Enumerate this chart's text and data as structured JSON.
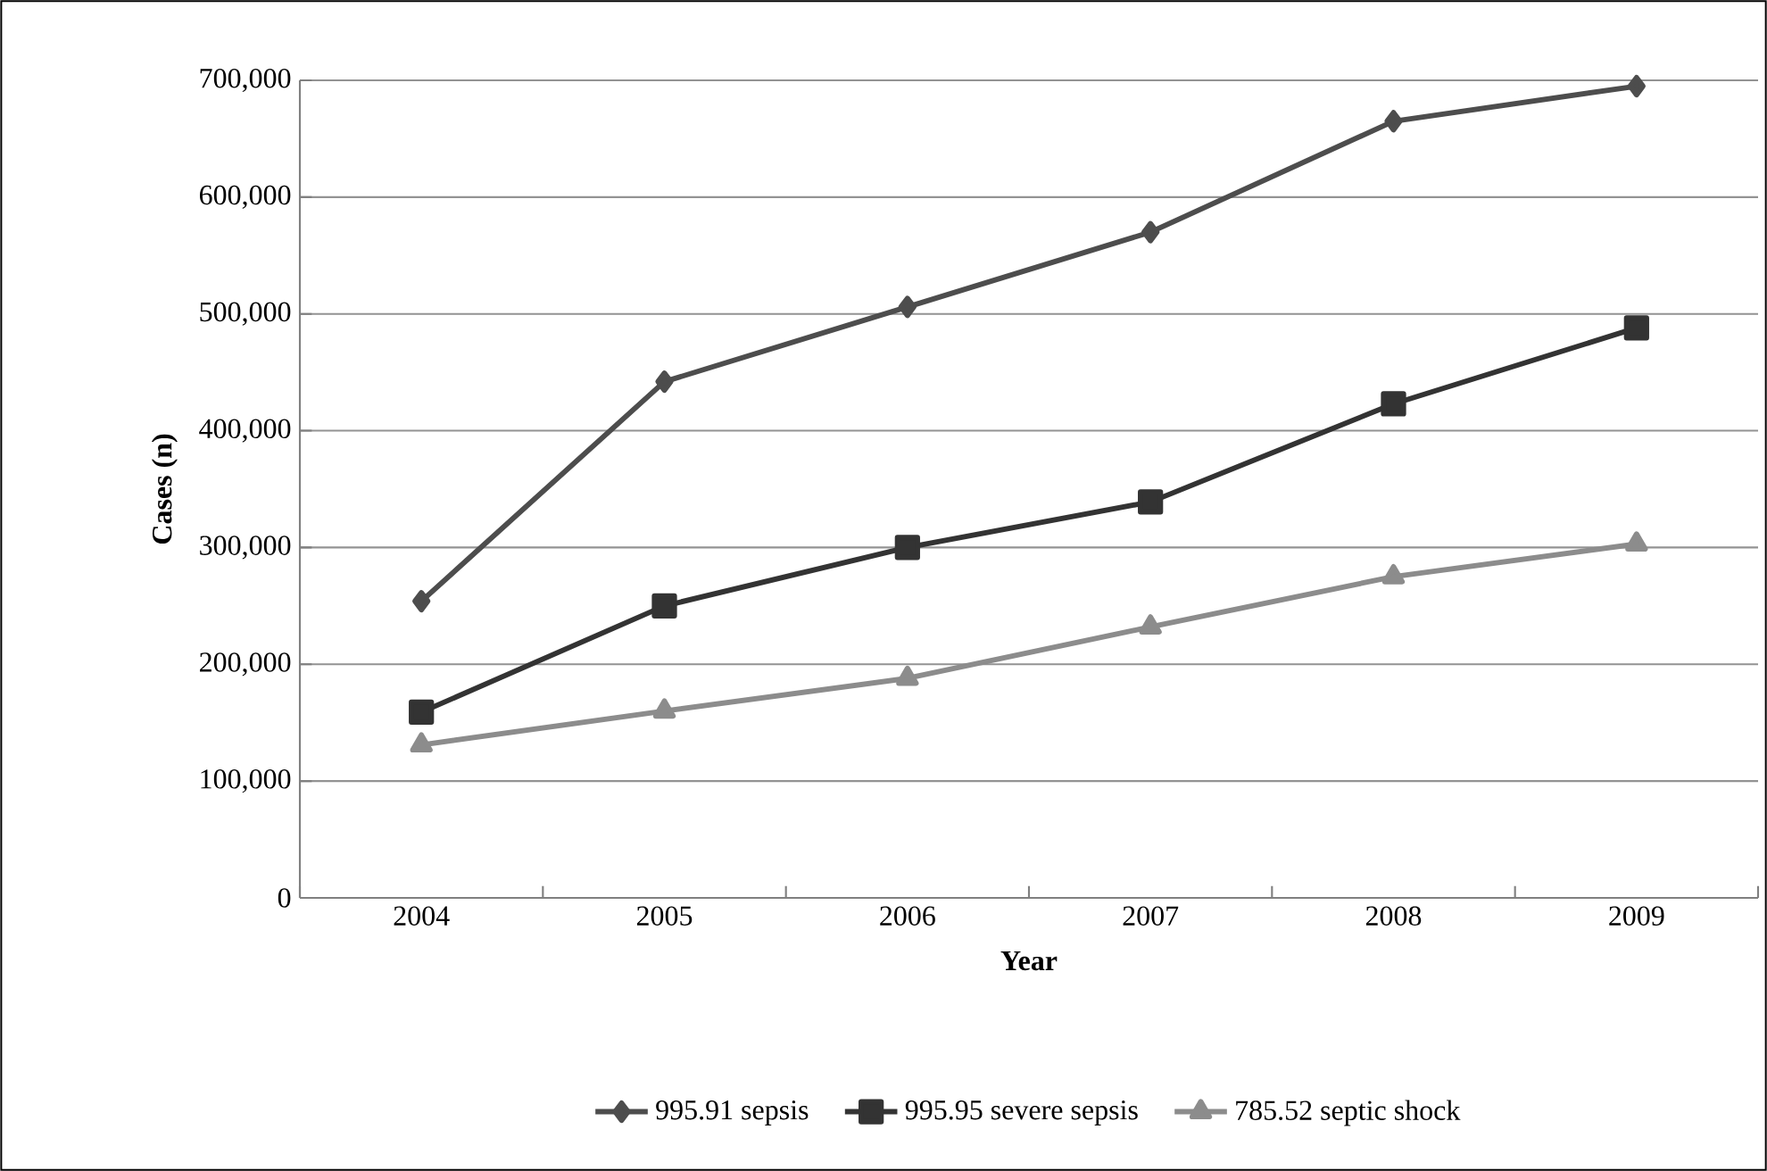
{
  "chart_data": {
    "type": "line",
    "xlabel": "Year",
    "ylabel": "Cases (n)",
    "categories": [
      "2004",
      "2005",
      "2006",
      "2007",
      "2008",
      "2009"
    ],
    "series": [
      {
        "name": "995.91 sepsis",
        "color": "#4d4d4d",
        "marker": "diamond",
        "values": [
          254000,
          442000,
          506000,
          570000,
          665000,
          695000
        ]
      },
      {
        "name": "995.95 severe sepsis",
        "color": "#333333",
        "marker": "square",
        "values": [
          159000,
          250000,
          300000,
          339000,
          423000,
          488000
        ]
      },
      {
        "name": "785.52 septic shock",
        "color": "#8c8c8c",
        "marker": "triangle",
        "values": [
          131000,
          160000,
          188000,
          232000,
          275000,
          303000
        ]
      }
    ],
    "ylim": [
      0,
      700000
    ],
    "yticks": [
      {
        "value": 0,
        "label": "0"
      },
      {
        "value": 100000,
        "label": "100,000"
      },
      {
        "value": 200000,
        "label": "200,000"
      },
      {
        "value": 300000,
        "label": "300,000"
      },
      {
        "value": 400000,
        "label": "400,000"
      },
      {
        "value": 500000,
        "label": "500,000"
      },
      {
        "value": 600000,
        "label": "600,000"
      },
      {
        "value": 700000,
        "label": "700,000"
      }
    ],
    "grid": "y",
    "legend": "bottom"
  }
}
